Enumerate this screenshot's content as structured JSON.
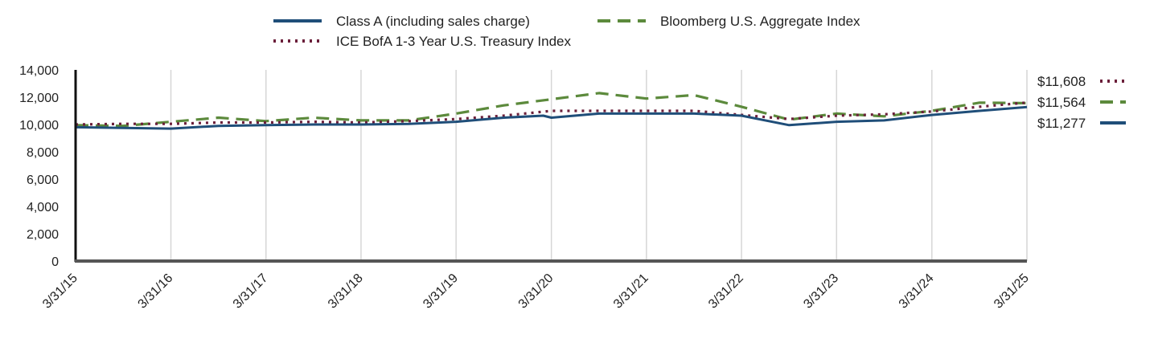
{
  "chart_data": {
    "type": "line",
    "title": "",
    "xlabel": "",
    "ylabel": "",
    "ylim": [
      0,
      14000
    ],
    "y_ticks": [
      0,
      2000,
      4000,
      6000,
      8000,
      10000,
      12000,
      14000
    ],
    "y_tick_labels": [
      "0",
      "2,000",
      "4,000",
      "6,000",
      "8,000",
      "10,000",
      "12,000",
      "14,000"
    ],
    "x_range": [
      "2015-03-31",
      "2025-03-31"
    ],
    "x_ticks": [
      "2015-03-31",
      "2016-03-31",
      "2017-03-31",
      "2018-03-31",
      "2019-03-31",
      "2020-03-31",
      "2021-03-31",
      "2022-03-31",
      "2023-03-31",
      "2024-03-31",
      "2025-03-31"
    ],
    "x_tick_labels": [
      "3/31/15",
      "3/31/16",
      "3/31/17",
      "3/31/18",
      "3/31/19",
      "3/31/20",
      "3/31/21",
      "3/31/22",
      "3/31/23",
      "3/31/24",
      "3/31/25"
    ],
    "grid": "vertical",
    "legend_position": "top",
    "series": [
      {
        "name": "Class A (including sales charge)",
        "color": "#1f4e79",
        "style": "solid",
        "end_label": "$11,277",
        "x": [
          "2015-03-31",
          "2015-09-30",
          "2016-03-31",
          "2016-09-30",
          "2017-03-31",
          "2017-09-30",
          "2018-03-31",
          "2018-09-30",
          "2019-03-31",
          "2019-09-30",
          "2020-02-29",
          "2020-03-31",
          "2020-09-30",
          "2021-03-31",
          "2021-09-30",
          "2022-03-31",
          "2022-09-30",
          "2023-03-31",
          "2023-09-30",
          "2024-03-31",
          "2024-09-30",
          "2025-03-31"
        ],
        "y": [
          9800,
          9750,
          9700,
          9900,
          9950,
          10000,
          10000,
          10050,
          10200,
          10500,
          10650,
          10500,
          10800,
          10800,
          10800,
          10650,
          9950,
          10200,
          10300,
          10700,
          11000,
          11277
        ]
      },
      {
        "name": "ICE BofA 1-3 Year U.S. Treasury Index",
        "color": "#6b1f3a",
        "style": "dotted",
        "end_label": "$11,608",
        "x": [
          "2015-03-31",
          "2015-09-30",
          "2016-03-31",
          "2016-09-30",
          "2017-03-31",
          "2017-09-30",
          "2018-03-31",
          "2018-09-30",
          "2019-03-31",
          "2019-09-30",
          "2020-03-31",
          "2020-09-30",
          "2021-03-31",
          "2021-09-30",
          "2022-03-31",
          "2022-09-30",
          "2023-03-31",
          "2023-09-30",
          "2024-03-31",
          "2024-09-30",
          "2025-03-31"
        ],
        "y": [
          10000,
          10050,
          10050,
          10150,
          10150,
          10200,
          10150,
          10250,
          10400,
          10650,
          11000,
          11000,
          11000,
          11000,
          10700,
          10400,
          10650,
          10750,
          10950,
          11300,
          11608
        ]
      },
      {
        "name": "Bloomberg U.S. Aggregate Index",
        "color": "#5c8a3c",
        "style": "dashed",
        "end_label": "$11,564",
        "x": [
          "2015-03-31",
          "2015-09-30",
          "2016-03-31",
          "2016-09-30",
          "2017-03-31",
          "2017-09-30",
          "2018-03-31",
          "2018-09-30",
          "2019-03-31",
          "2019-09-30",
          "2020-03-31",
          "2020-09-30",
          "2021-03-31",
          "2021-09-30",
          "2022-03-31",
          "2022-09-30",
          "2023-03-31",
          "2023-09-30",
          "2024-03-31",
          "2024-09-30",
          "2025-03-31"
        ],
        "y": [
          9950,
          9900,
          10200,
          10500,
          10250,
          10500,
          10300,
          10300,
          10800,
          11400,
          11850,
          12300,
          11900,
          12150,
          11300,
          10350,
          10800,
          10600,
          11000,
          11600,
          11564
        ]
      }
    ]
  }
}
